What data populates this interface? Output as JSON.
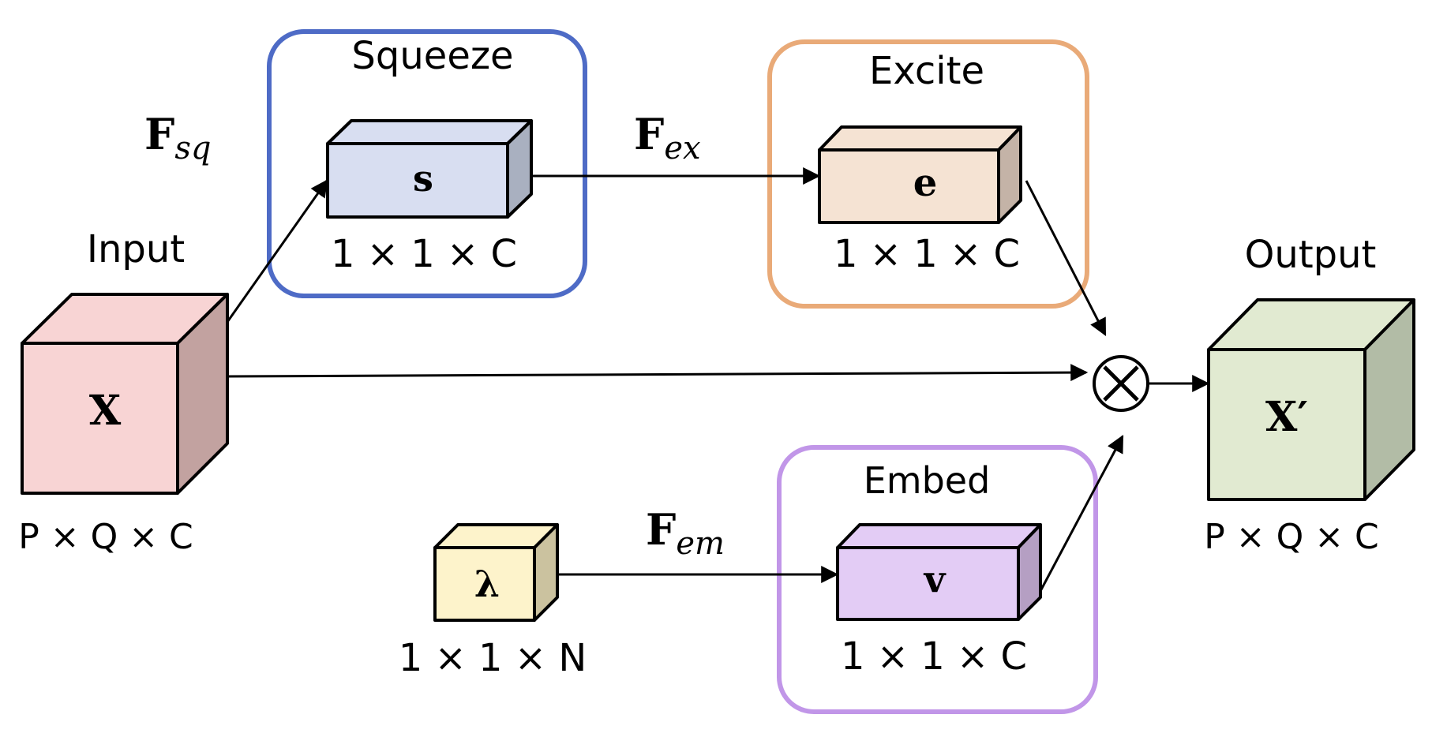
{
  "diagram": {
    "input": {
      "title": "Input",
      "symbol": "X",
      "dims": "P × Q × C"
    },
    "output": {
      "title": "Output",
      "symbol": "X′",
      "dims": "P × Q × C"
    },
    "squeeze": {
      "title": "Squeeze",
      "symbol": "s",
      "dims": "1 × 1 × C"
    },
    "excite": {
      "title": "Excite",
      "symbol": "e",
      "dims": "1 × 1 × C"
    },
    "embed": {
      "title": "Embed",
      "symbol": "v",
      "dims": "1 × 1 × C"
    },
    "lambda": {
      "symbol": "λ",
      "dims": "1 × 1 × N"
    },
    "functions": {
      "fsq": {
        "main": "F",
        "sub": "sq"
      },
      "fex": {
        "main": "F",
        "sub": "ex"
      },
      "fem": {
        "main": "F",
        "sub": "em"
      }
    },
    "operator": "⊗"
  },
  "colors": {
    "squeeze_border": "#4e6bc6",
    "excite_border": "#e9aa78",
    "embed_border": "#c196e8",
    "input_front": "#f8d4d4",
    "input_side": "#c2a2a0",
    "output_front": "#e1ead1",
    "output_side": "#b2bca6",
    "s_front": "#d8def1",
    "s_side": "#a9b0c0",
    "e_front": "#f5e3d3",
    "e_side": "#c4b3a7",
    "v_front": "#e3ccf5",
    "v_side": "#b59fc3",
    "lambda_front": "#fdf3cb",
    "lambda_side": "#cbc29f"
  }
}
